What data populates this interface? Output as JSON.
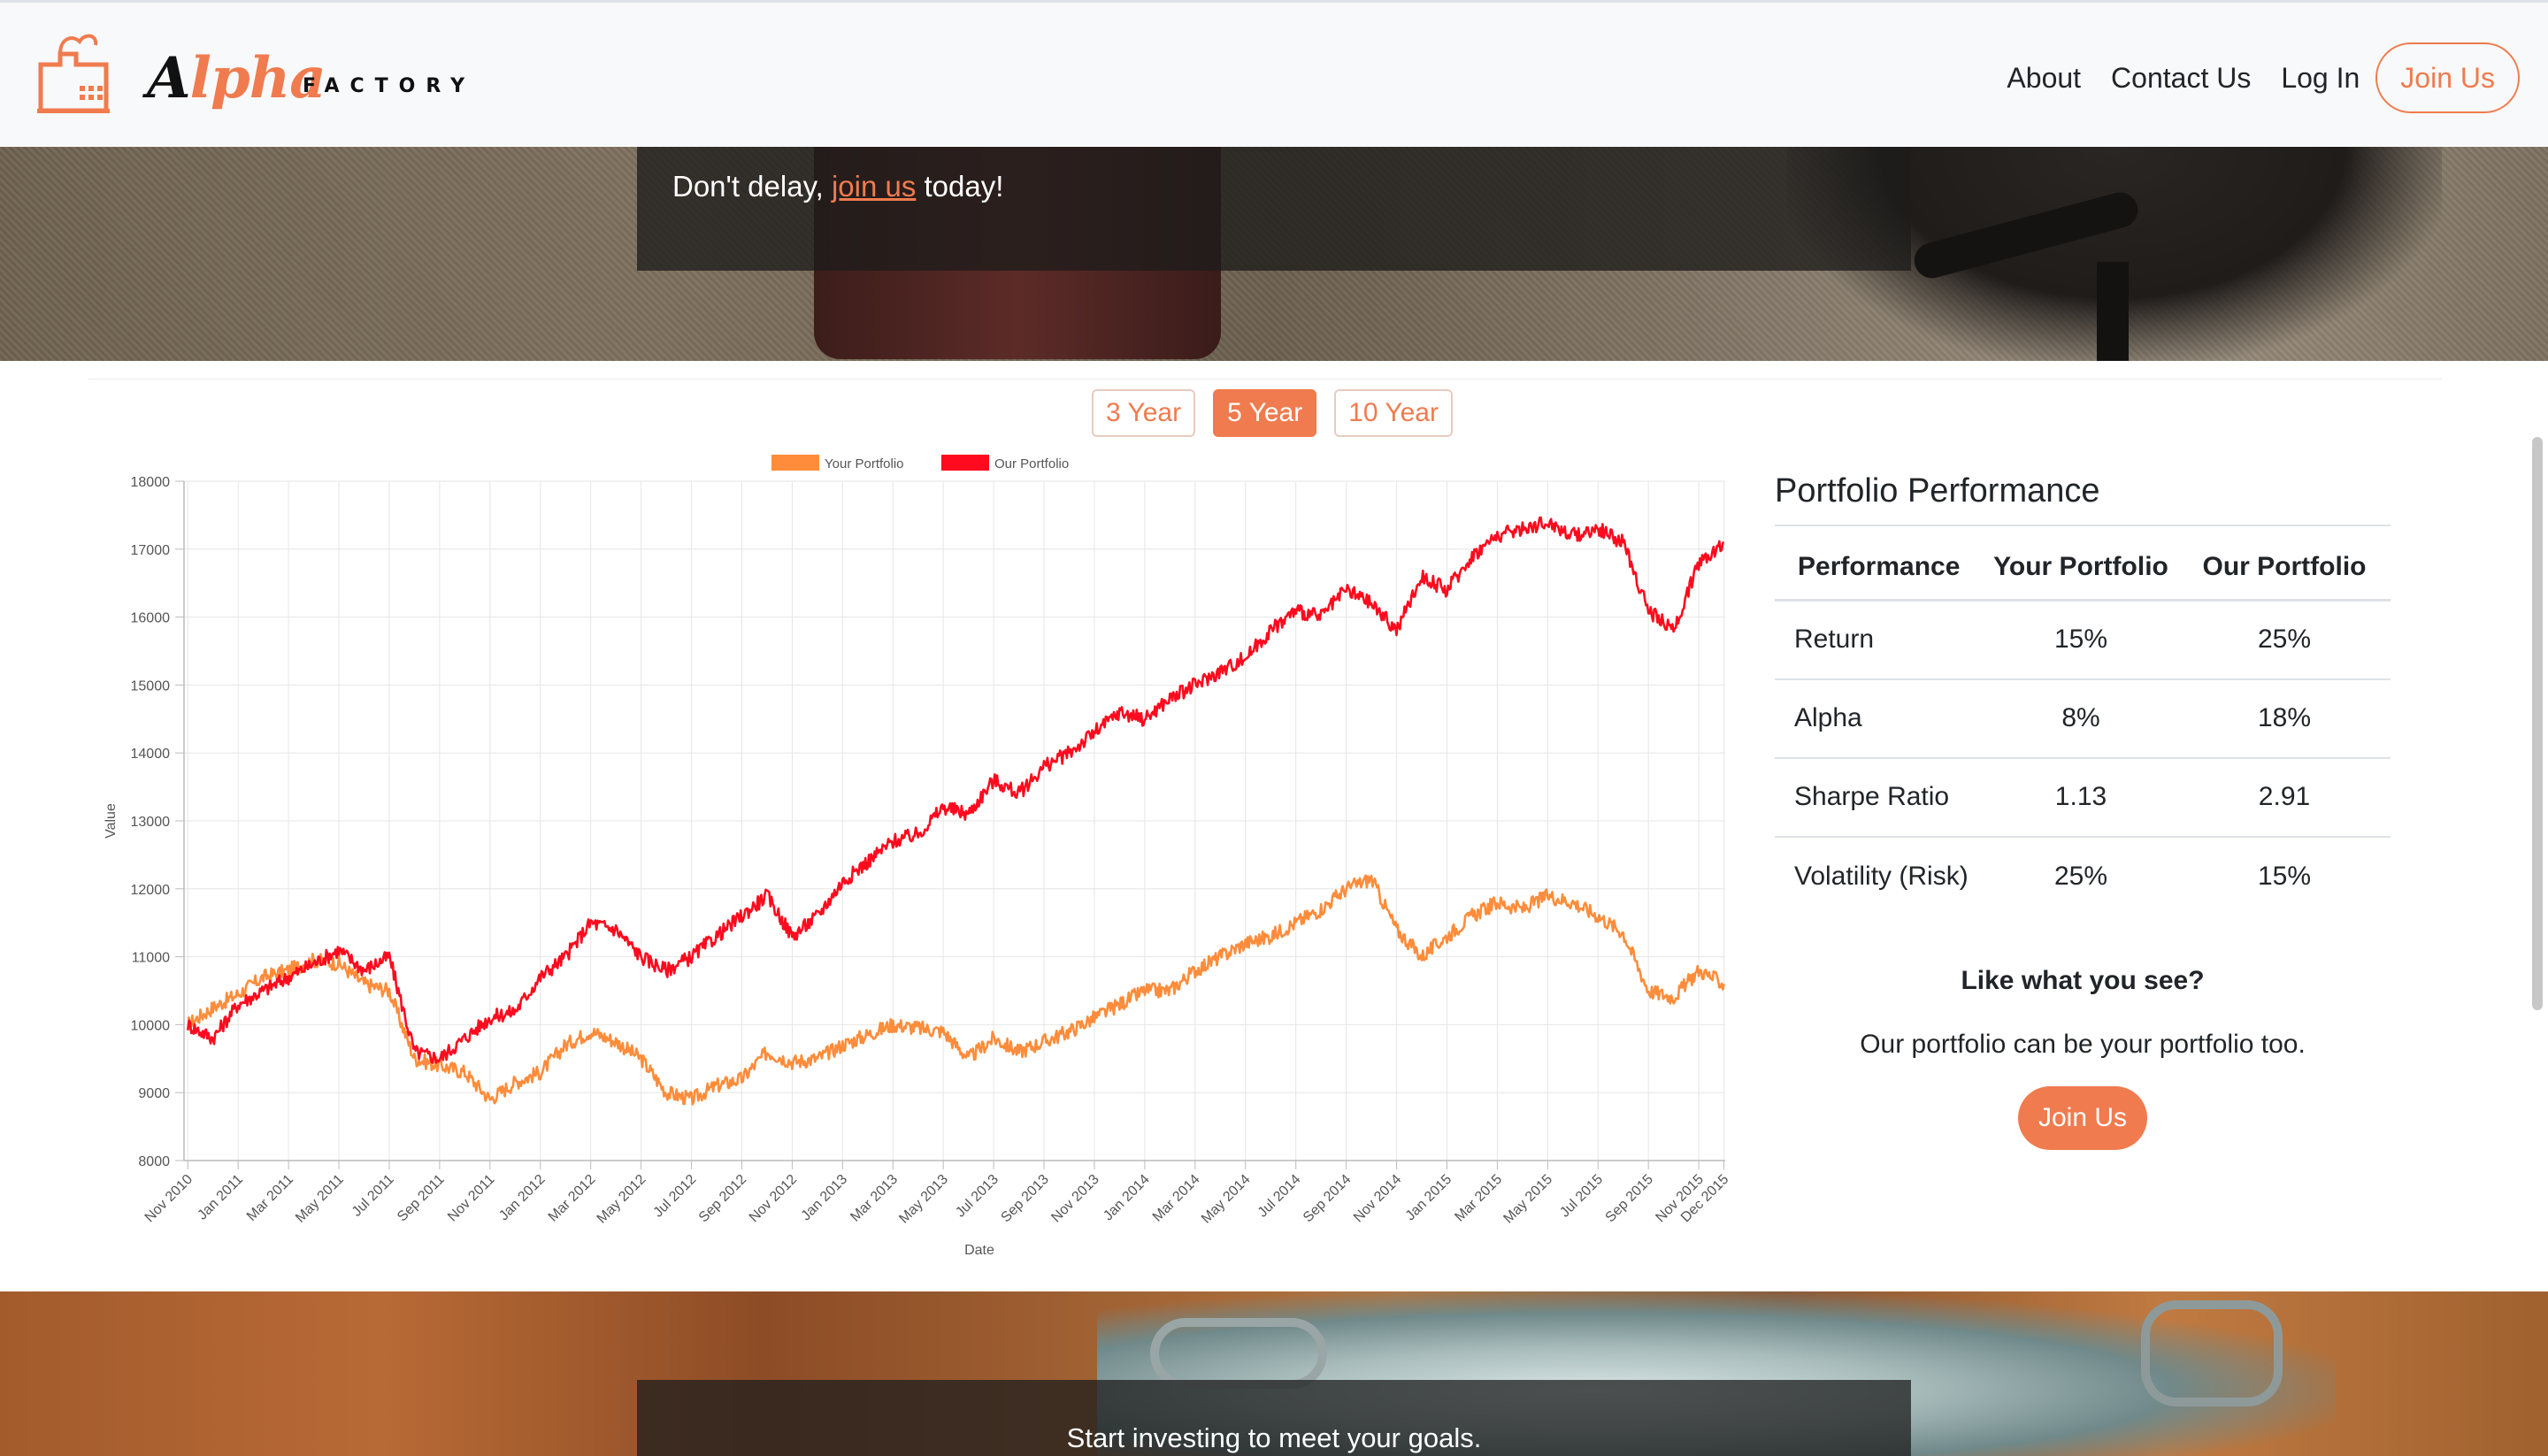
{
  "brand": {
    "name_first": "A",
    "name_rest": "lpha",
    "name_suffix": "FACTORY"
  },
  "nav": {
    "about": "About",
    "contact": "Contact Us",
    "login": "Log In",
    "join": "Join Us"
  },
  "hero": {
    "prefix": "Don't delay, ",
    "link": "join us",
    "suffix": " today!"
  },
  "periods": [
    {
      "label": "3 Year",
      "active": false
    },
    {
      "label": "5 Year",
      "active": true
    },
    {
      "label": "10 Year",
      "active": false
    }
  ],
  "chart_data": {
    "type": "line",
    "xlabel": "Date",
    "ylabel": "Value",
    "ylim": [
      8000,
      18000
    ],
    "yticks": [
      8000,
      9000,
      10000,
      11000,
      12000,
      13000,
      14000,
      15000,
      16000,
      17000,
      18000
    ],
    "legend_position": "top",
    "grid": true,
    "xticks": [
      "Nov 2010",
      "Jan 2011",
      "Mar 2011",
      "May 2011",
      "Jul 2011",
      "Sep 2011",
      "Nov 2011",
      "Jan 2012",
      "Mar 2012",
      "May 2012",
      "Jul 2012",
      "Sep 2012",
      "Nov 2012",
      "Jan 2013",
      "Mar 2013",
      "May 2013",
      "Jul 2013",
      "Sep 2013",
      "Nov 2013",
      "Jan 2014",
      "Mar 2014",
      "May 2014",
      "Jul 2014",
      "Sep 2014",
      "Nov 2014",
      "Jan 2015",
      "Mar 2015",
      "May 2015",
      "Jul 2015",
      "Sep 2015",
      "Nov 2015",
      "Dec 2015"
    ],
    "series": [
      {
        "name": "Your Portfolio",
        "color": "#ff8c3a",
        "points": [
          [
            "Nov 2010",
            10000
          ],
          [
            "Dec 2010",
            10250
          ],
          [
            "Jan 2011",
            10450
          ],
          [
            "Feb 2011",
            10700
          ],
          [
            "Mar 2011",
            10800
          ],
          [
            "Apr 2011",
            10950
          ],
          [
            "May 2011",
            10900
          ],
          [
            "Jun 2011",
            10600
          ],
          [
            "Jul 2011",
            10500
          ],
          [
            "Aug 2011",
            9500
          ],
          [
            "Sep 2011",
            9400
          ],
          [
            "Oct 2011",
            9300
          ],
          [
            "Nov 2011",
            8900
          ],
          [
            "Dec 2011",
            9150
          ],
          [
            "Jan 2012",
            9300
          ],
          [
            "Feb 2012",
            9700
          ],
          [
            "Mar 2012",
            9900
          ],
          [
            "Apr 2012",
            9750
          ],
          [
            "May 2012",
            9500
          ],
          [
            "Jun 2012",
            9000
          ],
          [
            "Jul 2012",
            8900
          ],
          [
            "Aug 2012",
            9100
          ],
          [
            "Sep 2012",
            9200
          ],
          [
            "Oct 2012",
            9600
          ],
          [
            "Nov 2012",
            9450
          ],
          [
            "Dec 2012",
            9500
          ],
          [
            "Jan 2013",
            9700
          ],
          [
            "Feb 2013",
            9850
          ],
          [
            "Mar 2013",
            10000
          ],
          [
            "Apr 2013",
            9950
          ],
          [
            "May 2013",
            9900
          ],
          [
            "Jun 2013",
            9500
          ],
          [
            "Jul 2013",
            9800
          ],
          [
            "Aug 2013",
            9600
          ],
          [
            "Sep 2013",
            9750
          ],
          [
            "Oct 2013",
            9900
          ],
          [
            "Nov 2013",
            10100
          ],
          [
            "Dec 2013",
            10300
          ],
          [
            "Jan 2014",
            10500
          ],
          [
            "Feb 2014",
            10500
          ],
          [
            "Mar 2014",
            10800
          ],
          [
            "Apr 2014",
            11000
          ],
          [
            "May 2014",
            11200
          ],
          [
            "Jun 2014",
            11300
          ],
          [
            "Jul 2014",
            11500
          ],
          [
            "Aug 2014",
            11700
          ],
          [
            "Sep 2014",
            12000
          ],
          [
            "Oct 2014",
            12150
          ],
          [
            "Nov 2014",
            11400
          ],
          [
            "Dec 2014",
            11000
          ],
          [
            "Jan 2015",
            11300
          ],
          [
            "Feb 2015",
            11600
          ],
          [
            "Mar 2015",
            11800
          ],
          [
            "Apr 2015",
            11700
          ],
          [
            "May 2015",
            11900
          ],
          [
            "Jun 2015",
            11800
          ],
          [
            "Jul 2015",
            11600
          ],
          [
            "Aug 2015",
            11350
          ],
          [
            "Sep 2015",
            10500
          ],
          [
            "Oct 2015",
            10400
          ],
          [
            "Nov 2015",
            10800
          ],
          [
            "Dec 2015",
            10600
          ]
        ]
      },
      {
        "name": "Our Portfolio",
        "color": "#ff0a1e",
        "points": [
          [
            "Nov 2010",
            10000
          ],
          [
            "Dec 2010",
            9800
          ],
          [
            "Jan 2011",
            10300
          ],
          [
            "Feb 2011",
            10500
          ],
          [
            "Mar 2011",
            10700
          ],
          [
            "Apr 2011",
            10900
          ],
          [
            "May 2011",
            11100
          ],
          [
            "Jun 2011",
            10800
          ],
          [
            "Jul 2011",
            11000
          ],
          [
            "Aug 2011",
            9600
          ],
          [
            "Sep 2011",
            9500
          ],
          [
            "Oct 2011",
            9800
          ],
          [
            "Nov 2011",
            10100
          ],
          [
            "Dec 2011",
            10200
          ],
          [
            "Jan 2012",
            10700
          ],
          [
            "Feb 2012",
            11000
          ],
          [
            "Mar 2012",
            11500
          ],
          [
            "Apr 2012",
            11400
          ],
          [
            "May 2012",
            11000
          ],
          [
            "Jun 2012",
            10800
          ],
          [
            "Jul 2012",
            11000
          ],
          [
            "Aug 2012",
            11300
          ],
          [
            "Sep 2012",
            11600
          ],
          [
            "Oct 2012",
            11900
          ],
          [
            "Nov 2012",
            11300
          ],
          [
            "Dec 2012",
            11600
          ],
          [
            "Jan 2013",
            12100
          ],
          [
            "Feb 2013",
            12400
          ],
          [
            "Mar 2013",
            12700
          ],
          [
            "Apr 2013",
            12800
          ],
          [
            "May 2013",
            13200
          ],
          [
            "Jun 2013",
            13100
          ],
          [
            "Jul 2013",
            13600
          ],
          [
            "Aug 2013",
            13400
          ],
          [
            "Sep 2013",
            13800
          ],
          [
            "Oct 2013",
            14000
          ],
          [
            "Nov 2013",
            14300
          ],
          [
            "Dec 2013",
            14600
          ],
          [
            "Jan 2014",
            14500
          ],
          [
            "Feb 2014",
            14800
          ],
          [
            "Mar 2014",
            15000
          ],
          [
            "Apr 2014",
            15200
          ],
          [
            "May 2014",
            15400
          ],
          [
            "Jun 2014",
            15800
          ],
          [
            "Jul 2014",
            16100
          ],
          [
            "Aug 2014",
            16000
          ],
          [
            "Sep 2014",
            16400
          ],
          [
            "Oct 2014",
            16200
          ],
          [
            "Nov 2014",
            15800
          ],
          [
            "Dec 2014",
            16600
          ],
          [
            "Jan 2015",
            16400
          ],
          [
            "Feb 2015",
            16900
          ],
          [
            "Mar 2015",
            17200
          ],
          [
            "Apr 2015",
            17300
          ],
          [
            "May 2015",
            17400
          ],
          [
            "Jun 2015",
            17200
          ],
          [
            "Jul 2015",
            17300
          ],
          [
            "Aug 2015",
            17100
          ],
          [
            "Sep 2015",
            16100
          ],
          [
            "Oct 2015",
            15800
          ],
          [
            "Nov 2015",
            16800
          ],
          [
            "Dec 2015",
            17100
          ]
        ]
      }
    ]
  },
  "performance": {
    "title": "Portfolio Performance",
    "headers": [
      "Performance",
      "Your Portfolio",
      "Our Portfolio"
    ],
    "rows": [
      [
        "Return",
        "15%",
        "25%"
      ],
      [
        "Alpha",
        "8%",
        "18%"
      ],
      [
        "Sharpe Ratio",
        "1.13",
        "2.91"
      ],
      [
        "Volatility (Risk)",
        "25%",
        "15%"
      ]
    ]
  },
  "cta": {
    "title": "Like what you see?",
    "text": "Our portfolio can be your portfolio too.",
    "button": "Join Us"
  },
  "bottom": {
    "text": "Start investing to meet your goals."
  },
  "colors": {
    "accent": "#f07b4e"
  }
}
